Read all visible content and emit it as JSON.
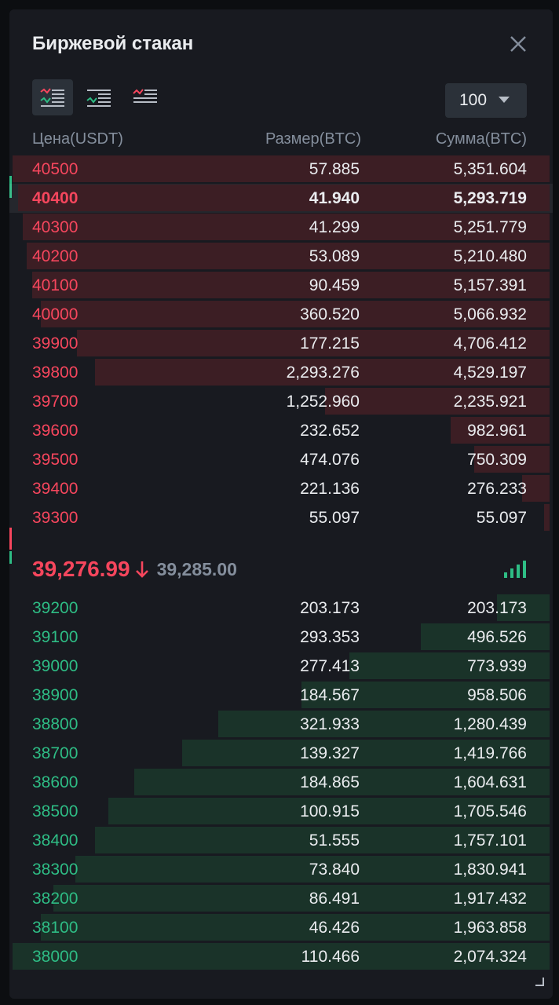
{
  "header": {
    "title": "Биржевой стакан"
  },
  "icons": {
    "close": "close-icon",
    "view_both": "orderbook-both-icon",
    "view_bids": "orderbook-bids-icon",
    "view_asks": "orderbook-asks-icon",
    "down_arrow": "arrow-down-icon",
    "signal": "signal-bars-icon",
    "resize": "resize-corner-icon"
  },
  "depth_select": {
    "value": "100"
  },
  "columns": {
    "price": "Цена(USDT)",
    "size": "Размер(BTC)",
    "sum": "Сумма(BTC)"
  },
  "colors": {
    "ask": "#f6465d",
    "bid": "#2ebd85",
    "ask_bar": "#3c1e24",
    "bid_bar": "#1a3329",
    "panel": "#181a20"
  },
  "asks": [
    {
      "price": "40500",
      "size": "57.885",
      "sum": "5,351.604",
      "depth": 5351.604
    },
    {
      "price": "40400",
      "size": "41.940",
      "sum": "5,293.719",
      "depth": 5293.719,
      "highlighted": true
    },
    {
      "price": "40300",
      "size": "41.299",
      "sum": "5,251.779",
      "depth": 5251.779
    },
    {
      "price": "40200",
      "size": "53.089",
      "sum": "5,210.480",
      "depth": 5210.48
    },
    {
      "price": "40100",
      "size": "90.459",
      "sum": "5,157.391",
      "depth": 5157.391
    },
    {
      "price": "40000",
      "size": "360.520",
      "sum": "5,066.932",
      "depth": 5066.932
    },
    {
      "price": "39900",
      "size": "177.215",
      "sum": "4,706.412",
      "depth": 4706.412
    },
    {
      "price": "39800",
      "size": "2,293.276",
      "sum": "4,529.197",
      "depth": 4529.197
    },
    {
      "price": "39700",
      "size": "1,252.960",
      "sum": "2,235.921",
      "depth": 2235.921
    },
    {
      "price": "39600",
      "size": "232.652",
      "sum": "982.961",
      "depth": 982.961
    },
    {
      "price": "39500",
      "size": "474.076",
      "sum": "750.309",
      "depth": 750.309
    },
    {
      "price": "39400",
      "size": "221.136",
      "sum": "276.233",
      "depth": 276.233
    },
    {
      "price": "39300",
      "size": "55.097",
      "sum": "55.097",
      "depth": 55.097
    }
  ],
  "mid_price": {
    "last": "39,276.99",
    "mark": "39,285.00",
    "direction": "down"
  },
  "bids": [
    {
      "price": "39200",
      "size": "203.173",
      "sum": "203.173",
      "depth": 203.173
    },
    {
      "price": "39100",
      "size": "293.353",
      "sum": "496.526",
      "depth": 496.526
    },
    {
      "price": "39000",
      "size": "277.413",
      "sum": "773.939",
      "depth": 773.939
    },
    {
      "price": "38900",
      "size": "184.567",
      "sum": "958.506",
      "depth": 958.506
    },
    {
      "price": "38800",
      "size": "321.933",
      "sum": "1,280.439",
      "depth": 1280.439
    },
    {
      "price": "38700",
      "size": "139.327",
      "sum": "1,419.766",
      "depth": 1419.766
    },
    {
      "price": "38600",
      "size": "184.865",
      "sum": "1,604.631",
      "depth": 1604.631
    },
    {
      "price": "38500",
      "size": "100.915",
      "sum": "1,705.546",
      "depth": 1705.546
    },
    {
      "price": "38400",
      "size": "51.555",
      "sum": "1,757.101",
      "depth": 1757.101
    },
    {
      "price": "38300",
      "size": "73.840",
      "sum": "1,830.941",
      "depth": 1830.941
    },
    {
      "price": "38200",
      "size": "86.491",
      "sum": "1,917.432",
      "depth": 1917.432
    },
    {
      "price": "38100",
      "size": "46.426",
      "sum": "1,963.858",
      "depth": 1963.858
    },
    {
      "price": "38000",
      "size": "110.466",
      "sum": "2,074.324",
      "depth": 2074.324
    }
  ]
}
